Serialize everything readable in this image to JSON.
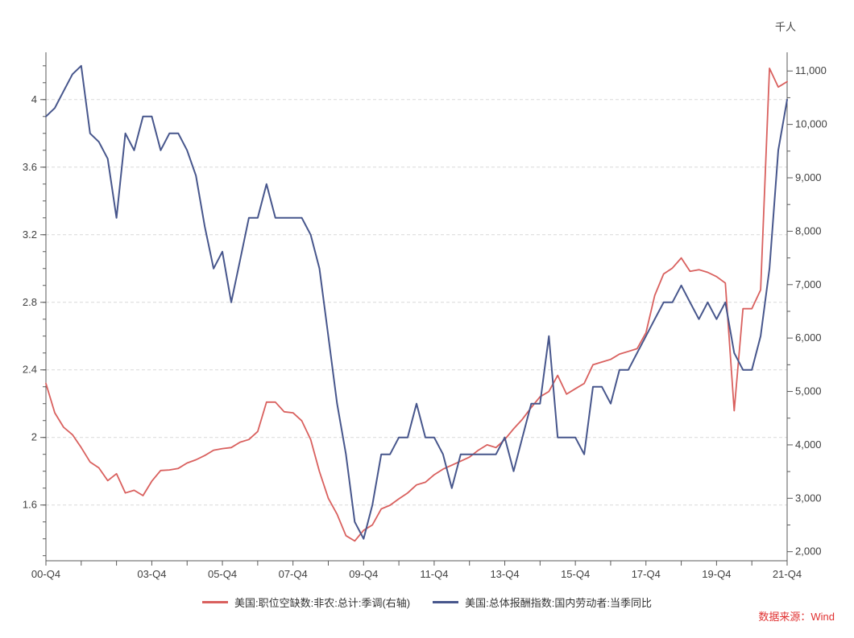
{
  "chart_data": {
    "type": "line",
    "title": "",
    "grid": "horizontal-dashed",
    "legend_position": "bottom",
    "x": {
      "quarters": [
        "00-Q4",
        "01-Q1",
        "01-Q2",
        "01-Q3",
        "01-Q4",
        "02-Q1",
        "02-Q2",
        "02-Q3",
        "02-Q4",
        "03-Q1",
        "03-Q2",
        "03-Q3",
        "03-Q4",
        "04-Q1",
        "04-Q2",
        "04-Q3",
        "04-Q4",
        "05-Q1",
        "05-Q2",
        "05-Q3",
        "05-Q4",
        "06-Q1",
        "06-Q2",
        "06-Q3",
        "06-Q4",
        "07-Q1",
        "07-Q2",
        "07-Q3",
        "07-Q4",
        "08-Q1",
        "08-Q2",
        "08-Q3",
        "08-Q4",
        "09-Q1",
        "09-Q2",
        "09-Q3",
        "09-Q4",
        "10-Q1",
        "10-Q2",
        "10-Q3",
        "10-Q4",
        "11-Q1",
        "11-Q2",
        "11-Q3",
        "11-Q4",
        "12-Q1",
        "12-Q2",
        "12-Q3",
        "12-Q4",
        "13-Q1",
        "13-Q2",
        "13-Q3",
        "13-Q4",
        "14-Q1",
        "14-Q2",
        "14-Q3",
        "14-Q4",
        "15-Q1",
        "15-Q2",
        "15-Q3",
        "15-Q4",
        "16-Q1",
        "16-Q2",
        "16-Q3",
        "16-Q4",
        "17-Q1",
        "17-Q2",
        "17-Q3",
        "17-Q4",
        "18-Q1",
        "18-Q2",
        "18-Q3",
        "18-Q4",
        "19-Q1",
        "19-Q2",
        "19-Q3",
        "19-Q4",
        "20-Q1",
        "20-Q2",
        "20-Q3",
        "20-Q4",
        "21-Q1",
        "21-Q2",
        "21-Q3",
        "21-Q4"
      ],
      "labeled_ticks": [
        {
          "index": 0,
          "label": "00-Q4"
        },
        {
          "index": 12,
          "label": "03-Q4"
        },
        {
          "index": 20,
          "label": "05-Q4"
        },
        {
          "index": 28,
          "label": "07-Q4"
        },
        {
          "index": 36,
          "label": "09-Q4"
        },
        {
          "index": 44,
          "label": "11-Q4"
        },
        {
          "index": 52,
          "label": "13-Q4"
        },
        {
          "index": 60,
          "label": "15-Q4"
        },
        {
          "index": 68,
          "label": "17-Q4"
        },
        {
          "index": 76,
          "label": "19-Q4"
        },
        {
          "index": 84,
          "label": "21-Q4"
        }
      ],
      "year_tick_every_quarters": 4
    },
    "y_left": {
      "tick_values": [
        1.6,
        2.0,
        2.4,
        2.8,
        3.2,
        3.6,
        4.0
      ],
      "tick_labels": [
        "1.6",
        "2",
        "2.4",
        "2.8",
        "3.2",
        "3.6",
        "4"
      ],
      "minor_step": 0.1,
      "min": 1.27,
      "max": 4.28
    },
    "y_right": {
      "unit": "千人",
      "tick_values": [
        2000,
        3000,
        4000,
        5000,
        6000,
        7000,
        8000,
        9000,
        10000,
        11000
      ],
      "tick_labels": [
        "2,000",
        "3,000",
        "4,000",
        "5,000",
        "6,000",
        "7,000",
        "8,000",
        "9,000",
        "10,000",
        "11,000"
      ],
      "minor_step": 500,
      "min": 1830,
      "max": 11350
    },
    "series": [
      {
        "name": "美国:职位空缺数:非农:总计:季调(右轴)",
        "axis": "right",
        "color": "#d9605e",
        "values": [
          5150,
          4600,
          4330,
          4190,
          3950,
          3680,
          3570,
          3330,
          3460,
          3100,
          3150,
          3050,
          3320,
          3520,
          3530,
          3560,
          3660,
          3720,
          3800,
          3900,
          3930,
          3950,
          4050,
          4100,
          4250,
          4800,
          4800,
          4620,
          4600,
          4450,
          4100,
          3500,
          3000,
          2700,
          2300,
          2200,
          2400,
          2500,
          2800,
          2870,
          2990,
          3100,
          3250,
          3300,
          3440,
          3545,
          3620,
          3695,
          3770,
          3900,
          4000,
          3950,
          4100,
          4300,
          4480,
          4700,
          4900,
          5000,
          5300,
          4950,
          5050,
          5150,
          5500,
          5550,
          5600,
          5700,
          5750,
          5800,
          6100,
          6800,
          7200,
          7310,
          7500,
          7250,
          7280,
          7230,
          7150,
          7030,
          4640,
          6550,
          6550,
          6900,
          11050,
          10700,
          10800
        ]
      },
      {
        "name": "美国:总体报酬指数:国内劳动者:当季同比",
        "axis": "left",
        "color": "#47568c",
        "values": [
          3.9,
          3.95,
          4.05,
          4.15,
          4.2,
          3.8,
          3.75,
          3.65,
          3.3,
          3.8,
          3.7,
          3.9,
          3.9,
          3.7,
          3.8,
          3.8,
          3.7,
          3.55,
          3.25,
          3.0,
          3.1,
          2.8,
          3.05,
          3.3,
          3.3,
          3.5,
          3.3,
          3.3,
          3.3,
          3.3,
          3.2,
          3.0,
          2.6,
          2.2,
          1.9,
          1.5,
          1.4,
          1.6,
          1.9,
          1.9,
          2.0,
          2.0,
          2.2,
          2.0,
          2.0,
          1.9,
          1.7,
          1.9,
          1.9,
          1.9,
          1.9,
          1.9,
          2.0,
          1.8,
          2.0,
          2.2,
          2.2,
          2.6,
          2.0,
          2.0,
          2.0,
          1.9,
          2.3,
          2.3,
          2.2,
          2.4,
          2.4,
          2.5,
          2.6,
          2.7,
          2.8,
          2.8,
          2.9,
          2.8,
          2.7,
          2.8,
          2.7,
          2.8,
          2.5,
          2.4,
          2.4,
          2.6,
          3.0,
          3.7,
          4.0
        ]
      }
    ]
  },
  "footer": {
    "source": "数据来源：Wind",
    "source_color": "#e03131"
  }
}
